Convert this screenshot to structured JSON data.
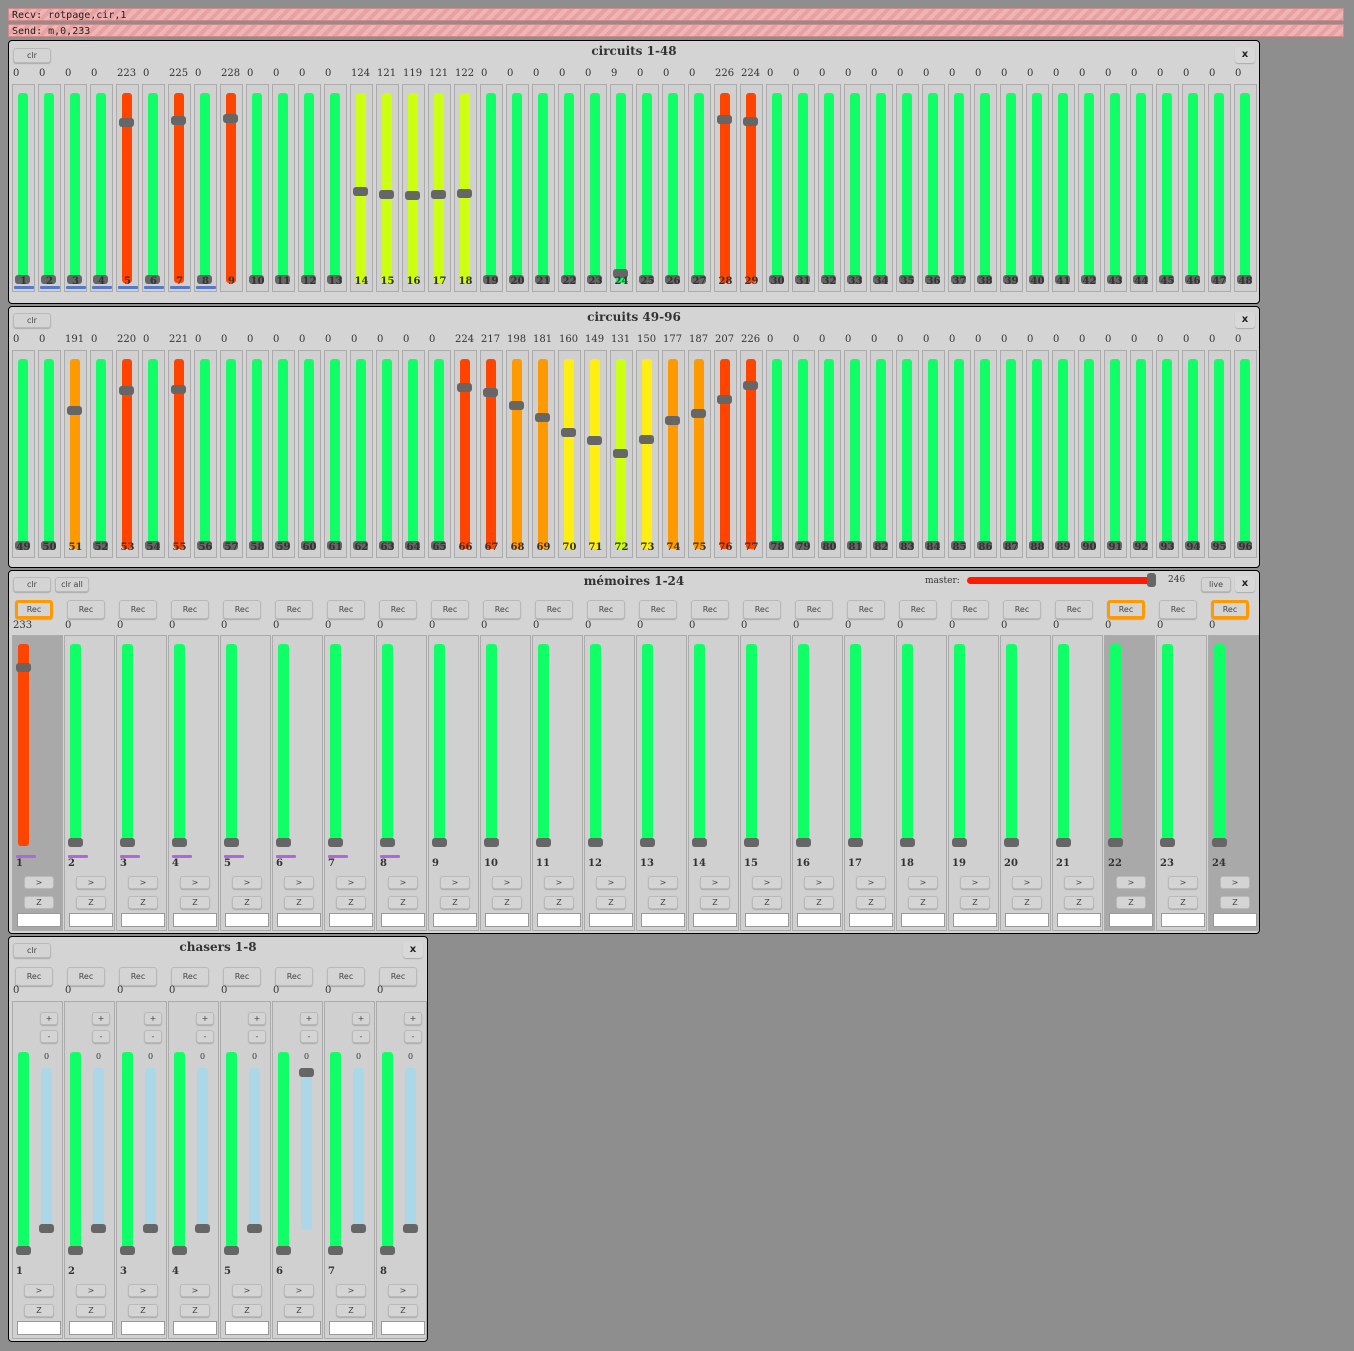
{
  "status": {
    "recv": "Recv: rotpage,cir,1",
    "send": "Send: m,0,233"
  },
  "panels": {
    "circuits1": {
      "title": "circuits 1-48",
      "clr": "clr",
      "close": "x"
    },
    "circuits2": {
      "title": "circuits 49-96",
      "clr": "clr",
      "close": "x"
    },
    "memoires": {
      "title": "mémoires 1-24",
      "clr": "clr",
      "clr_all": "clr all",
      "master_label": "master:",
      "master_value": 246,
      "live": "live",
      "close": "x"
    },
    "chasers": {
      "title": "chasers 1-8",
      "clr": "clr",
      "close": "x"
    }
  },
  "colors": {
    "green": "#11ff66",
    "red": "#ff4400",
    "orange": "#ff9900",
    "yellow": "#ffee11",
    "lime": "#ccff11",
    "lightblue": "#aad8e8",
    "orangeBorder": "#ff9900"
  },
  "circuits1_values": [
    0,
    0,
    0,
    0,
    223,
    0,
    225,
    0,
    228,
    0,
    0,
    0,
    0,
    124,
    121,
    119,
    121,
    122,
    0,
    0,
    0,
    0,
    0,
    9,
    0,
    0,
    0,
    226,
    224,
    0,
    0,
    0,
    0,
    0,
    0,
    0,
    0,
    0,
    0,
    0,
    0,
    0,
    0,
    0,
    0,
    0,
    0,
    0
  ],
  "circuits1_blue": [
    1,
    2,
    3,
    4,
    5,
    6,
    7,
    8
  ],
  "circuits2_values": [
    0,
    0,
    191,
    0,
    220,
    0,
    221,
    0,
    0,
    0,
    0,
    0,
    0,
    0,
    0,
    0,
    0,
    224,
    217,
    198,
    181,
    160,
    149,
    131,
    150,
    177,
    187,
    207,
    226,
    0,
    0,
    0,
    0,
    0,
    0,
    0,
    0,
    0,
    0,
    0,
    0,
    0,
    0,
    0,
    0,
    0,
    0,
    0
  ],
  "memoires": {
    "rec_label": "Rec",
    "go_label": ">",
    "z_label": "Z",
    "values": [
      233,
      0,
      0,
      0,
      0,
      0,
      0,
      0,
      0,
      0,
      0,
      0,
      0,
      0,
      0,
      0,
      0,
      0,
      0,
      0,
      0,
      0,
      0,
      0
    ],
    "levels": [
      246,
      255,
      255,
      255,
      255,
      255,
      255,
      255,
      255,
      255,
      255,
      255,
      255,
      255,
      255,
      255,
      255,
      255,
      255,
      255,
      255,
      255,
      255,
      255
    ],
    "rec_active": [
      1,
      22,
      24
    ],
    "purple": [
      1,
      2,
      3,
      4,
      5,
      6,
      7,
      8
    ],
    "dim_bg": [
      1,
      22,
      24
    ]
  },
  "chasers": {
    "rec_label": "Rec",
    "plus_label": "+",
    "minus_label": "-",
    "go_label": ">",
    "z_label": "Z",
    "values": [
      0,
      0,
      0,
      0,
      0,
      0,
      0,
      0
    ],
    "speed_labels": [
      "0",
      "0",
      "0",
      "0",
      "0",
      "0",
      "0",
      "0"
    ],
    "speed_level": [
      0,
      0,
      0,
      0,
      0,
      1,
      0,
      0
    ]
  }
}
